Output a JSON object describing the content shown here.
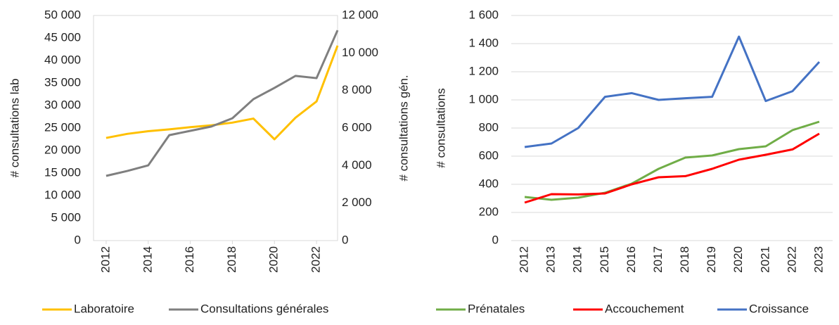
{
  "chart_data": [
    {
      "type": "line",
      "x": [
        2012,
        2013,
        2014,
        2015,
        2016,
        2017,
        2018,
        2019,
        2020,
        2021,
        2022,
        2023
      ],
      "xlim": [
        2011.4,
        2023
      ],
      "xticks": [
        2012,
        2014,
        2016,
        2018,
        2020,
        2022
      ],
      "ylabel": "# consultations lab",
      "y2label": "# consultations gén.",
      "ylim": [
        0,
        50000
      ],
      "yticks": [
        0,
        {
          "value": 5000,
          "label": "5 000"
        },
        {
          "value": 10000,
          "label": "10 000"
        },
        {
          "value": 15000,
          "label": "15 000"
        },
        {
          "value": 20000,
          "label": "20 000"
        },
        {
          "value": 25000,
          "label": "25 000"
        },
        {
          "value": 30000,
          "label": "30 000"
        },
        {
          "value": 35000,
          "label": "35 000"
        },
        {
          "value": 40000,
          "label": "40 000"
        },
        {
          "value": 45000,
          "label": "45 000"
        },
        {
          "value": 50000,
          "label": "50 000"
        }
      ],
      "y2lim": [
        0,
        12000
      ],
      "y2ticks": [
        0,
        {
          "value": 2000,
          "label": "2 000"
        },
        {
          "value": 4000,
          "label": "4 000"
        },
        {
          "value": 6000,
          "label": "6 000"
        },
        {
          "value": 8000,
          "label": "8 000"
        },
        {
          "value": 10000,
          "label": "10 000"
        },
        {
          "value": 12000,
          "label": "12 000"
        }
      ],
      "grid": false,
      "legend": "bottom",
      "series": [
        {
          "name": "Laboratoire",
          "color": "#FFC000",
          "values": [
            22800,
            23700,
            24300,
            24700,
            25200,
            25600,
            26200,
            27100,
            22500,
            27300,
            30900,
            43300
          ]
        },
        {
          "name": "Consultations générales",
          "color": "#7F7F7F",
          "axis": "y2",
          "values": [
            3450,
            3710,
            4010,
            5620,
            5850,
            6080,
            6520,
            7540,
            8140,
            8780,
            8660,
            11210
          ]
        }
      ]
    },
    {
      "type": "line",
      "categories": [
        "2012",
        "2013",
        "2014",
        "2015",
        "2016",
        "2017",
        "2018",
        "2019",
        "2020",
        "2021",
        "2022",
        "2023"
      ],
      "ylabel": "# consultations",
      "ylim": [
        0,
        1600
      ],
      "yticks": [
        0,
        200,
        400,
        600,
        800,
        {
          "value": 1000,
          "label": "1 000"
        },
        {
          "value": 1200,
          "label": "1 200"
        },
        {
          "value": 1400,
          "label": "1 400"
        },
        {
          "value": 1600,
          "label": "1 600"
        }
      ],
      "grid": true,
      "legend": "bottom",
      "series": [
        {
          "name": "Prénatales",
          "color": "#70AD47",
          "values": [
            310,
            290,
            305,
            340,
            405,
            510,
            590,
            605,
            650,
            670,
            785,
            845
          ]
        },
        {
          "name": "Accouchement",
          "color": "#FF0000",
          "values": [
            270,
            330,
            328,
            335,
            400,
            450,
            458,
            510,
            575,
            610,
            648,
            760
          ]
        },
        {
          "name": "Croissance",
          "color": "#4472C4",
          "values": [
            665,
            690,
            800,
            1022,
            1048,
            1000,
            1012,
            1022,
            1450,
            992,
            1062,
            1270
          ]
        }
      ]
    }
  ]
}
